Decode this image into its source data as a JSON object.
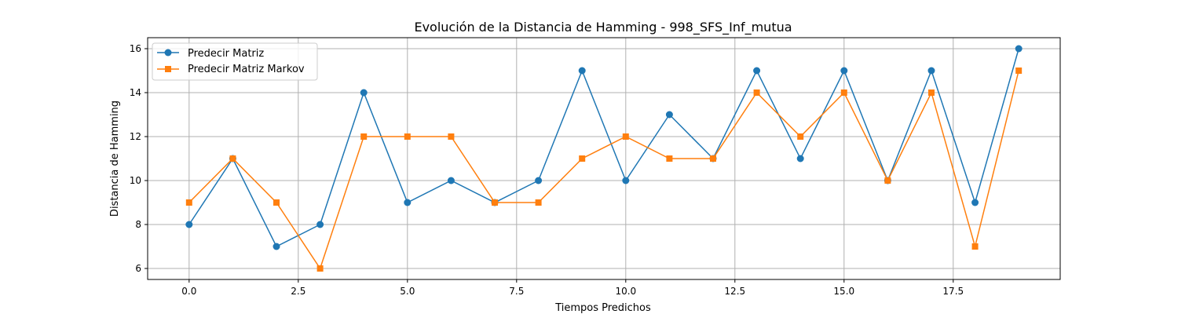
{
  "chart_data": {
    "type": "line",
    "title": "Evolución de la Distancia de Hamming - 998_SFS_Inf_mutua",
    "xlabel": "Tiempos Predichos",
    "ylabel": "Distancia de Hamming",
    "xlim": [
      -0.95,
      19.95
    ],
    "ylim": [
      5.5,
      16.5
    ],
    "x_ticks": [
      0.0,
      2.5,
      5.0,
      7.5,
      10.0,
      12.5,
      15.0,
      17.5
    ],
    "x_tick_labels": [
      "0.0",
      "2.5",
      "5.0",
      "7.5",
      "10.0",
      "12.5",
      "15.0",
      "17.5"
    ],
    "y_ticks": [
      6,
      8,
      10,
      12,
      14,
      16
    ],
    "y_tick_labels": [
      "6",
      "8",
      "10",
      "12",
      "14",
      "16"
    ],
    "grid": true,
    "legend_position": "top-left",
    "x": [
      0,
      1,
      2,
      3,
      4,
      5,
      6,
      7,
      8,
      9,
      10,
      11,
      12,
      13,
      14,
      15,
      16,
      17,
      18,
      19
    ],
    "series": [
      {
        "name": "Predecir Matriz",
        "color": "#1f77b4",
        "marker": "circle",
        "values": [
          8,
          11,
          7,
          8,
          14,
          9,
          10,
          9,
          10,
          15,
          10,
          13,
          11,
          15,
          11,
          15,
          10,
          15,
          9,
          16
        ]
      },
      {
        "name": "Predecir Matriz Markov",
        "color": "#ff7f0e",
        "marker": "square",
        "values": [
          9,
          11,
          9,
          6,
          12,
          12,
          12,
          9,
          9,
          11,
          12,
          11,
          11,
          14,
          12,
          14,
          10,
          14,
          7,
          15
        ]
      }
    ]
  }
}
